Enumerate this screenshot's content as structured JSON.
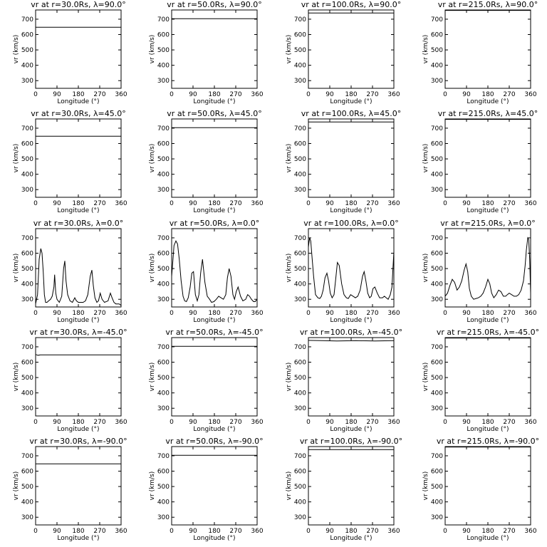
{
  "chart_data": {
    "type": "line",
    "layout": "5 rows x 4 columns",
    "xlabel": "Longitude (°)",
    "ylabel": "vr (km/s)",
    "xlim": [
      0,
      360
    ],
    "ylim": [
      250,
      760
    ],
    "xticks": [
      0,
      90,
      180,
      270,
      360
    ],
    "yticks": [
      300,
      400,
      500,
      600,
      700
    ],
    "rows": [
      {
        "lat": "90.0",
        "panels": [
          {
            "title": "vr at r=30.0Rs, λ=90.0°",
            "x": [
              0,
              360
            ],
            "y": [
              648,
              648
            ]
          },
          {
            "title": "vr at r=50.0Rs, λ=90.0°",
            "x": [
              0,
              360
            ],
            "y": [
              703,
              703
            ]
          },
          {
            "title": "vr at r=100.0Rs, λ=90.0°",
            "x": [
              0,
              360
            ],
            "y": [
              740,
              740
            ]
          },
          {
            "title": "vr at r=215.0Rs, λ=90.0°",
            "x": [
              0,
              360
            ],
            "y": [
              757,
              757
            ]
          }
        ]
      },
      {
        "lat": "45.0",
        "panels": [
          {
            "title": "vr at r=30.0Rs, λ=45.0°",
            "x": [
              0,
              360
            ],
            "y": [
              648,
              648
            ]
          },
          {
            "title": "vr at r=50.0Rs, λ=45.0°",
            "x": [
              0,
              360
            ],
            "y": [
              703,
              703
            ]
          },
          {
            "title": "vr at r=100.0Rs, λ=45.0°",
            "x": [
              0,
              360
            ],
            "y": [
              740,
              740
            ]
          },
          {
            "title": "vr at r=215.0Rs, λ=45.0°",
            "x": [
              0,
              360
            ],
            "y": [
              757,
              757
            ]
          }
        ]
      },
      {
        "lat": "0.0",
        "panels": [
          {
            "title": "vr at r=30.0Rs, λ=0.0°",
            "x": [
              0,
              8,
              15,
              22,
              27,
              32,
              37,
              42,
              48,
              55,
              63,
              70,
              77,
              80,
              85,
              90,
              95,
              100,
              110,
              118,
              123,
              128,
              135,
              145,
              155,
              165,
              172,
              180,
              190,
              200,
              210,
              220,
              230,
              237,
              243,
              250,
              258,
              265,
              272,
              280,
              290,
              305,
              315,
              322,
              330,
              338,
              345,
              352,
              360
            ],
            "y": [
              270,
              330,
              560,
              630,
              600,
              480,
              330,
              280,
              280,
              290,
              300,
              320,
              380,
              460,
              340,
              300,
              290,
              280,
              320,
              500,
              550,
              420,
              330,
              290,
              280,
              310,
              290,
              280,
              280,
              280,
              290,
              330,
              450,
              490,
              390,
              310,
              280,
              290,
              340,
              300,
              280,
              290,
              340,
              310,
              280,
              270,
              270,
              270,
              260
            ]
          },
          {
            "title": "vr at r=50.0Rs, λ=0.0°",
            "x": [
              0,
              5,
              10,
              18,
              25,
              32,
              40,
              48,
              55,
              62,
              70,
              78,
              85,
              92,
              100,
              108,
              115,
              122,
              130,
              140,
              150,
              160,
              168,
              178,
              188,
              198,
              208,
              218,
              228,
              235,
              242,
              250,
              258,
              265,
              272,
              280,
              290,
              300,
              312,
              320,
              328,
              336,
              345,
              352,
              360
            ],
            "y": [
              450,
              550,
              650,
              680,
              660,
              560,
              420,
              320,
              290,
              285,
              310,
              380,
              470,
              480,
              330,
              290,
              330,
              470,
              560,
              410,
              320,
              300,
              280,
              285,
              300,
              320,
              310,
              300,
              330,
              440,
              500,
              450,
              330,
              300,
              350,
              380,
              320,
              290,
              300,
              330,
              320,
              300,
              285,
              285,
              300
            ]
          },
          {
            "title": "vr at r=100.0Rs, λ=0.0°",
            "x": [
              0,
              5,
              10,
              15,
              22,
              30,
              40,
              48,
              55,
              62,
              70,
              78,
              85,
              92,
              100,
              108,
              115,
              122,
              130,
              140,
              150,
              160,
              168,
              178,
              188,
              198,
              208,
              218,
              228,
              235,
              242,
              250,
              258,
              265,
              272,
              280,
              290,
              300,
              312,
              320,
              328,
              336,
              345,
              352,
              360
            ],
            "y": [
              640,
              700,
              680,
              580,
              450,
              330,
              310,
              305,
              320,
              360,
              440,
              470,
              420,
              340,
              310,
              330,
              430,
              540,
              520,
              400,
              330,
              310,
              305,
              330,
              320,
              310,
              320,
              360,
              450,
              480,
              420,
              340,
              310,
              320,
              370,
              380,
              340,
              310,
              310,
              320,
              310,
              300,
              330,
              380,
              610
            ]
          },
          {
            "title": "vr at r=215.0Rs, λ=0.0°",
            "x": [
              0,
              10,
              20,
              30,
              40,
              50,
              60,
              70,
              80,
              88,
              95,
              102,
              110,
              120,
              130,
              140,
              150,
              160,
              170,
              180,
              188,
              196,
              205,
              215,
              225,
              235,
              245,
              255,
              262,
              270,
              280,
              290,
              300,
              310,
              320,
              330,
              337,
              342,
              348,
              352,
              356,
              360
            ],
            "y": [
              320,
              340,
              390,
              430,
              410,
              360,
              380,
              420,
              490,
              530,
              480,
              370,
              320,
              300,
              305,
              310,
              320,
              340,
              380,
              430,
              400,
              340,
              310,
              330,
              360,
              350,
              320,
              320,
              330,
              340,
              330,
              320,
              320,
              330,
              360,
              420,
              520,
              620,
              700,
              690,
              560,
              340
            ]
          },
          {
            "_": ""
          }
        ]
      },
      {
        "lat": "-45.0",
        "panels": [
          {
            "title": "vr at r=30.0Rs, λ=-45.0°",
            "x": [
              0,
              10,
              20,
              360
            ],
            "y": [
              650,
              645,
              648,
              648
            ]
          },
          {
            "title": "vr at r=50.0Rs, λ=-45.0°",
            "x": [
              0,
              360
            ],
            "y": [
              703,
              703
            ]
          },
          {
            "title": "vr at r=100.0Rs, λ=-45.0°",
            "x": [
              0,
              60,
              120,
              200,
              280,
              360
            ],
            "y": [
              742,
              740,
              738,
              740,
              738,
              740
            ]
          },
          {
            "title": "vr at r=215.0Rs, λ=-45.0°",
            "x": [
              0,
              360
            ],
            "y": [
              757,
              757
            ]
          }
        ]
      },
      {
        "lat": "-90.0",
        "panels": [
          {
            "title": "vr at r=30.0Rs, λ=-90.0°",
            "x": [
              0,
              360
            ],
            "y": [
              648,
              648
            ]
          },
          {
            "title": "vr at r=50.0Rs, λ=-90.0°",
            "x": [
              0,
              360
            ],
            "y": [
              703,
              703
            ]
          },
          {
            "title": "vr at r=100.0Rs, λ=-90.0°",
            "x": [
              0,
              360
            ],
            "y": [
              740,
              740
            ]
          },
          {
            "title": "vr at r=215.0Rs, λ=-90.0°",
            "x": [
              0,
              360
            ],
            "y": [
              757,
              757
            ]
          }
        ]
      }
    ]
  }
}
